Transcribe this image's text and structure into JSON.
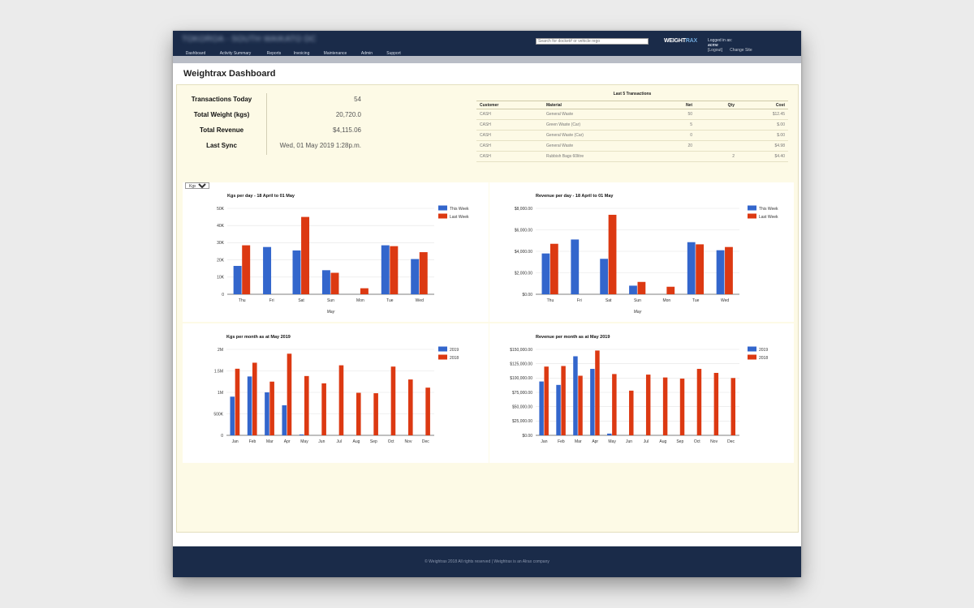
{
  "header": {
    "site_name": "TOKOROA - SOUTH WAIKATO DC",
    "search_placeholder": "Search for docket# or vehicle rego",
    "logo_main": "WEIGHT",
    "logo_accent": "RAX",
    "logged_in_label": "Logged in as:",
    "username": "acme",
    "logout_label": "[Logout]",
    "change_site_label": "Change Site"
  },
  "nav": {
    "tabs": [
      {
        "label": "Dashboard",
        "active": true
      },
      {
        "label": "Activity Summary",
        "active": false
      },
      {
        "label": "Reports",
        "active": false
      },
      {
        "label": "Invoicing",
        "active": false
      },
      {
        "label": "Maintenance",
        "active": false
      },
      {
        "label": "Admin",
        "active": false
      },
      {
        "label": "Support",
        "active": false
      }
    ]
  },
  "page": {
    "title": "Weightrax Dashboard"
  },
  "stats": [
    {
      "label": "Transactions Today",
      "value": "54"
    },
    {
      "label": "Total Weight (kgs)",
      "value": "20,720.0"
    },
    {
      "label": "Total Revenue",
      "value": "$4,115.06"
    },
    {
      "label": "Last Sync",
      "value": "Wed, 01 May 2019 1:28p.m."
    }
  ],
  "transactions": {
    "title": "Last 5 Transactions",
    "columns": [
      "Customer",
      "Material",
      "Net",
      "Qty",
      "Cost"
    ],
    "rows": [
      [
        "CASH",
        "General Waste",
        "50",
        "",
        "$12.45"
      ],
      [
        "CASH",
        "Green Waste (Car)",
        "5",
        "",
        "$.00"
      ],
      [
        "CASH",
        "General Waste (Car)",
        "0",
        "",
        "$.00"
      ],
      [
        "CASH",
        "General Waste",
        "20",
        "",
        "$4.98"
      ],
      [
        "CASH",
        "Rubbish Bags 60litre",
        "",
        "2",
        "$4.40"
      ]
    ]
  },
  "unit_select": {
    "value": "Kgs",
    "options": [
      "Kgs"
    ]
  },
  "colors": {
    "blue": "#3366cc",
    "red": "#dc3912"
  },
  "chart_data": [
    {
      "type": "bar",
      "title": "Kgs per day - 18 April to 01 May",
      "xlabel": "May",
      "ylabel": "",
      "categories": [
        "Thu",
        "Fri",
        "Sat",
        "Sun",
        "Mon",
        "Tue",
        "Wed"
      ],
      "series": [
        {
          "name": "This Week",
          "values": [
            16500,
            27500,
            25500,
            14000,
            0,
            28500,
            20500
          ]
        },
        {
          "name": "Last Week",
          "values": [
            28500,
            0,
            45000,
            12500,
            3500,
            28000,
            24500
          ]
        }
      ],
      "ylim": [
        0,
        50000
      ],
      "yticks": [
        "0",
        "10K",
        "20K",
        "30K",
        "40K",
        "50K"
      ],
      "legend": "top-right",
      "grid": true
    },
    {
      "type": "bar",
      "title": "Revenue per day - 18 April to 01 May",
      "xlabel": "May",
      "ylabel": "",
      "categories": [
        "Thu",
        "Fri",
        "Sat",
        "Sun",
        "Mon",
        "Tue",
        "Wed"
      ],
      "series": [
        {
          "name": "This Week",
          "values": [
            3800,
            5100,
            3300,
            800,
            0,
            4850,
            4100
          ]
        },
        {
          "name": "Last Week",
          "values": [
            4700,
            0,
            7400,
            1150,
            700,
            4650,
            4400
          ]
        }
      ],
      "ylim": [
        0,
        8000
      ],
      "yticks": [
        "$0.00",
        "$2,000.00",
        "$4,000.00",
        "$6,000.00",
        "$8,000.00"
      ],
      "legend": "top-right",
      "grid": true
    },
    {
      "type": "bar",
      "title": "Kgs per month as at May 2019",
      "xlabel": "",
      "ylabel": "",
      "categories": [
        "Jan",
        "Feb",
        "Mar",
        "Apr",
        "May",
        "Jun",
        "Jul",
        "Aug",
        "Sep",
        "Oct",
        "Nov",
        "Dec"
      ],
      "series": [
        {
          "name": "2019",
          "values": [
            900000,
            1370000,
            1000000,
            700000,
            20000,
            0,
            0,
            0,
            0,
            0,
            0,
            0
          ]
        },
        {
          "name": "2018",
          "values": [
            1550000,
            1690000,
            1250000,
            1900000,
            1380000,
            1210000,
            1630000,
            990000,
            980000,
            1600000,
            1300000,
            1110000
          ]
        }
      ],
      "ylim": [
        0,
        2000000
      ],
      "yticks": [
        "0",
        "500K",
        "1M",
        "1.5M",
        "2M"
      ],
      "legend": "top-right",
      "grid": true
    },
    {
      "type": "bar",
      "title": "Revenue per month as at May 2019",
      "xlabel": "",
      "ylabel": "",
      "categories": [
        "Jan",
        "Feb",
        "Mar",
        "Apr",
        "May",
        "Jun",
        "Jul",
        "Aug",
        "Sep",
        "Oct",
        "Nov",
        "Dec"
      ],
      "series": [
        {
          "name": "2019",
          "values": [
            94000,
            88000,
            138000,
            116000,
            3000,
            0,
            0,
            0,
            0,
            0,
            0,
            0
          ]
        },
        {
          "name": "2018",
          "values": [
            120000,
            121000,
            104000,
            148000,
            107000,
            78000,
            106000,
            101000,
            99000,
            116000,
            109000,
            100000
          ]
        }
      ],
      "ylim": [
        0,
        150000
      ],
      "yticks": [
        "$0.00",
        "$25,000.00",
        "$50,000.00",
        "$75,000.00",
        "$100,000.00",
        "$125,000.00",
        "$150,000.00"
      ],
      "legend": "top-right",
      "grid": true
    }
  ],
  "footer": {
    "text": "© Weightrax 2018 All rights reserved | Weightrax is an Alrax company"
  }
}
